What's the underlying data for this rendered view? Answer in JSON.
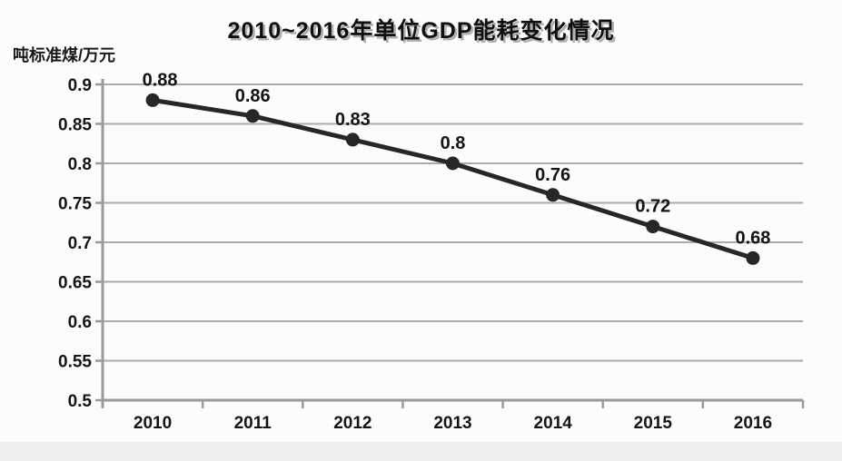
{
  "chart_data": {
    "type": "line",
    "title": "2010~2016年单位GDP能耗变化情况",
    "unit_label": "吨标准煤/万元",
    "categories": [
      "2010",
      "2011",
      "2012",
      "2013",
      "2014",
      "2015",
      "2016"
    ],
    "values": [
      0.88,
      0.86,
      0.83,
      0.8,
      0.76,
      0.72,
      0.68
    ],
    "point_labels": [
      "0.88",
      "0.86",
      "0.83",
      "0.8",
      "0.76",
      "0.72",
      "0.68"
    ],
    "ytick_labels": [
      "0.9",
      "0.85",
      "0.8",
      "0.75",
      "0.7",
      "0.65",
      "0.6",
      "0.55",
      "0.5"
    ],
    "ytick_values": [
      0.9,
      0.85,
      0.8,
      0.75,
      0.7,
      0.65,
      0.6,
      0.55,
      0.5
    ],
    "ylim": [
      0.5,
      0.9
    ],
    "xlabel": "",
    "ylabel": "吨标准煤/万元",
    "grid": "horizontal",
    "legend": "none",
    "colors": {
      "line": "#272727",
      "marker": "#272727",
      "grid": "#aaaaaa",
      "axis": "#9a9a9a",
      "text": "#141414"
    }
  }
}
